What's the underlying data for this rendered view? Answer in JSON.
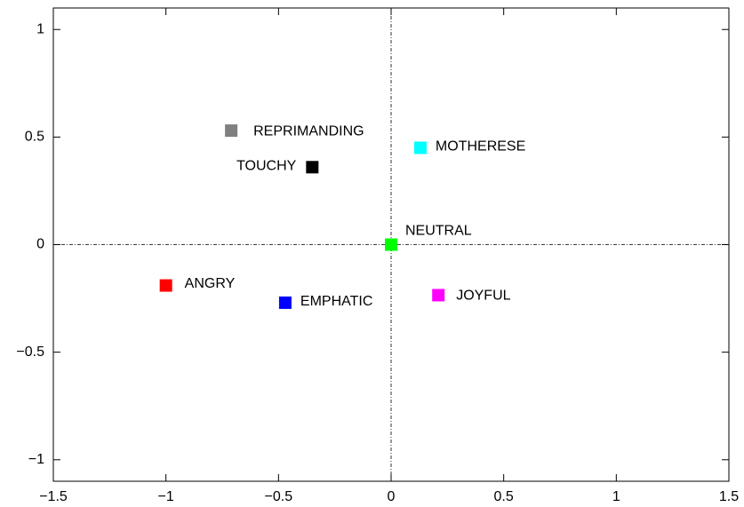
{
  "chart_data": {
    "type": "scatter",
    "xlim": [
      -1.5,
      1.5
    ],
    "ylim": [
      -1.1,
      1.1
    ],
    "xticks": [
      {
        "value": -1.5,
        "label": "−1.5"
      },
      {
        "value": -1,
        "label": "−1"
      },
      {
        "value": -0.5,
        "label": "−0.5"
      },
      0,
      0.5,
      1,
      1.5
    ],
    "yticks": [
      {
        "value": -1,
        "label": "−1"
      },
      {
        "value": -0.5,
        "label": "−0.5"
      },
      0,
      0.5,
      1
    ],
    "zero_lines": true,
    "series": [
      {
        "name": "REPRIMANDING",
        "color": "#808080",
        "x": [
          -0.71
        ],
        "values": [
          0.53
        ]
      },
      {
        "name": "TOUCHY",
        "color": "#000000",
        "x": [
          -0.35
        ],
        "values": [
          0.36
        ]
      },
      {
        "name": "MOTHERESE",
        "color": "#00ffff",
        "x": [
          0.13
        ],
        "values": [
          0.45
        ]
      },
      {
        "name": "NEUTRAL",
        "color": "#00ff00",
        "x": [
          0.0
        ],
        "values": [
          0.0
        ]
      },
      {
        "name": "ANGRY",
        "color": "#ff0000",
        "x": [
          -1.0
        ],
        "values": [
          -0.19
        ]
      },
      {
        "name": "EMPHATIC",
        "color": "#0000ff",
        "x": [
          -0.47
        ],
        "values": [
          -0.27
        ]
      },
      {
        "name": "JOYFUL",
        "color": "#ff00ff",
        "x": [
          0.21
        ],
        "values": [
          -0.235
        ]
      }
    ]
  }
}
